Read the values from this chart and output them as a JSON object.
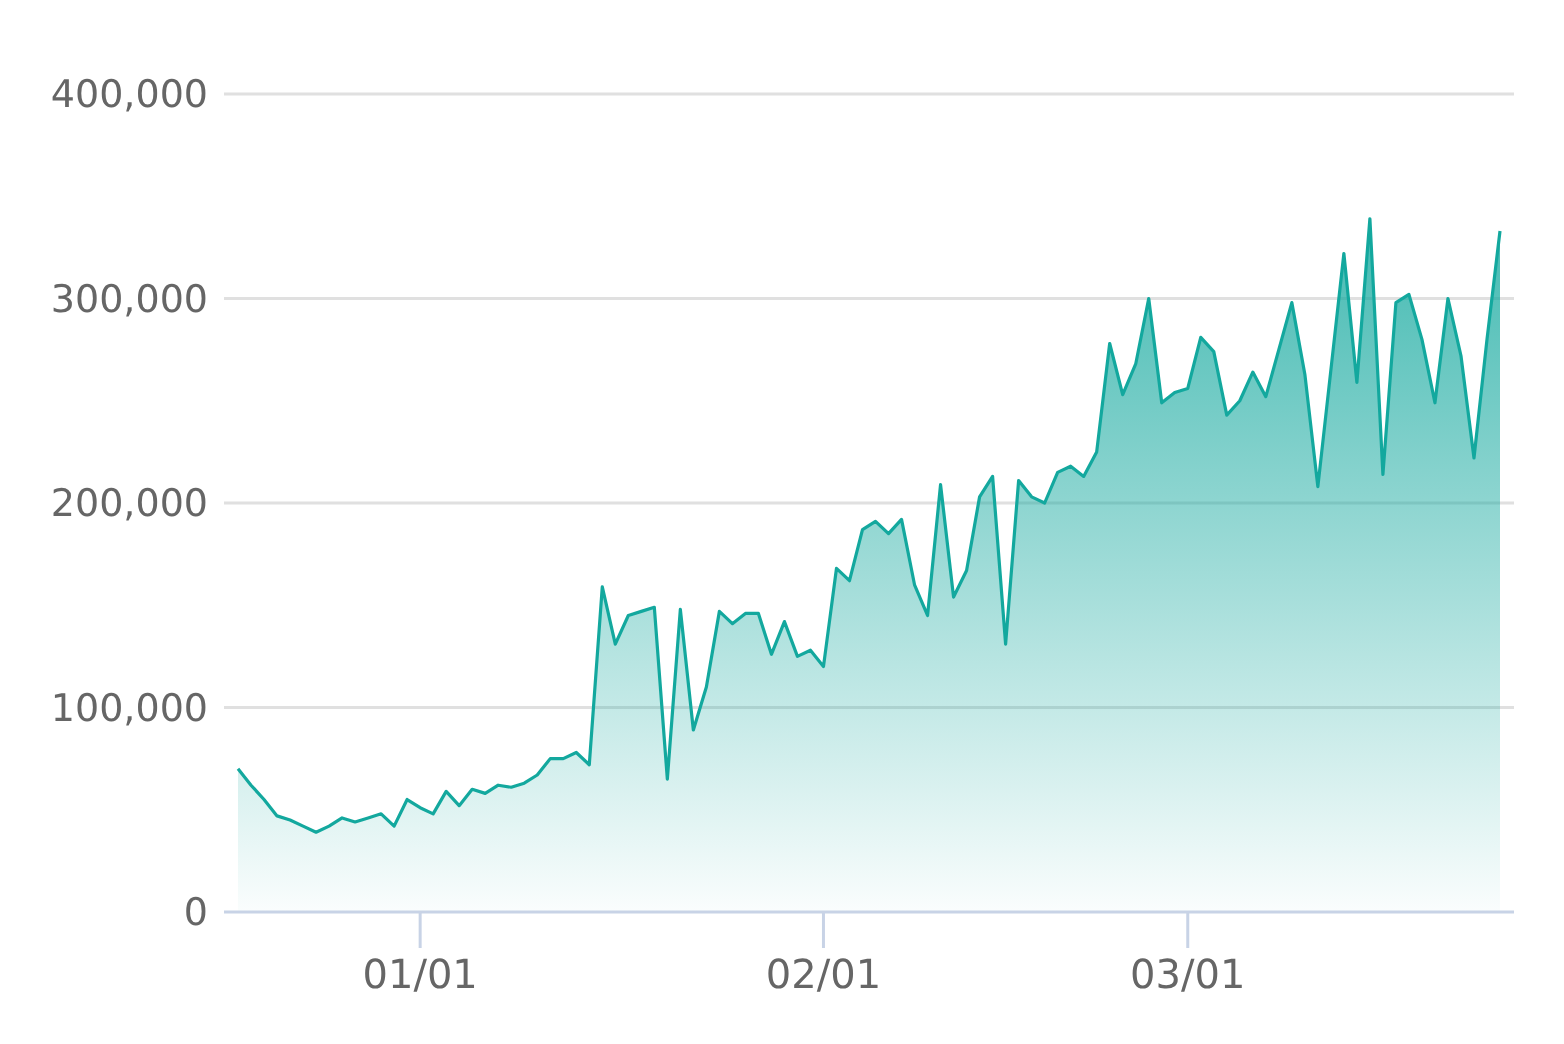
{
  "chart_data": {
    "type": "area",
    "categories": [
      null,
      null,
      null,
      null,
      null,
      null,
      null,
      null,
      null,
      null,
      null,
      null,
      null,
      null,
      "01/01",
      null,
      null,
      null,
      null,
      null,
      null,
      null,
      null,
      null,
      null,
      null,
      null,
      null,
      null,
      null,
      null,
      null,
      null,
      null,
      null,
      null,
      null,
      null,
      null,
      null,
      null,
      null,
      null,
      null,
      null,
      "02/01",
      null,
      null,
      null,
      null,
      null,
      null,
      null,
      null,
      null,
      null,
      null,
      null,
      null,
      null,
      null,
      null,
      null,
      null,
      null,
      null,
      null,
      null,
      null,
      null,
      null,
      null,
      null,
      "03/01",
      null,
      null,
      null,
      null,
      null,
      null,
      null,
      null,
      null,
      null,
      null,
      null,
      null,
      null,
      null,
      null,
      null,
      null,
      null,
      null,
      null,
      null,
      null,
      null
    ],
    "series": [
      {
        "color": "#13a89e",
        "values": [
          70000,
          62000,
          55000,
          47000,
          45000,
          42000,
          39000,
          42000,
          46000,
          44000,
          46000,
          48000,
          42000,
          55000,
          51000,
          48000,
          59000,
          52000,
          60000,
          58000,
          62000,
          61000,
          63000,
          67000,
          75000,
          75000,
          78000,
          72000,
          159000,
          131000,
          145000,
          147000,
          149000,
          65000,
          148000,
          89000,
          110000,
          147000,
          141000,
          146000,
          146000,
          126000,
          142000,
          125000,
          128000,
          120000,
          168000,
          162000,
          187000,
          191000,
          185000,
          192000,
          160000,
          145000,
          209000,
          154000,
          167000,
          203000,
          213000,
          131000,
          211000,
          203000,
          200000,
          215000,
          218000,
          213000,
          225000,
          278000,
          253000,
          268000,
          300000,
          249000,
          254000,
          256000,
          281000,
          274000,
          243000,
          250000,
          264000,
          252000,
          275000,
          298000,
          263000,
          208000,
          265000,
          322000,
          259000,
          339000,
          214000,
          298000,
          302000,
          280000,
          249000,
          300000,
          272000,
          222000,
          280000,
          333000
        ]
      }
    ],
    "ylim": [
      0,
      400000
    ],
    "yticks": [
      {
        "value": 0,
        "label": "0"
      },
      {
        "value": 100000,
        "label": "100,000"
      },
      {
        "value": 200000,
        "label": "200,000"
      },
      {
        "value": 300000,
        "label": "300,000"
      },
      {
        "value": 400000,
        "label": "400,000"
      }
    ],
    "grid": "y"
  }
}
